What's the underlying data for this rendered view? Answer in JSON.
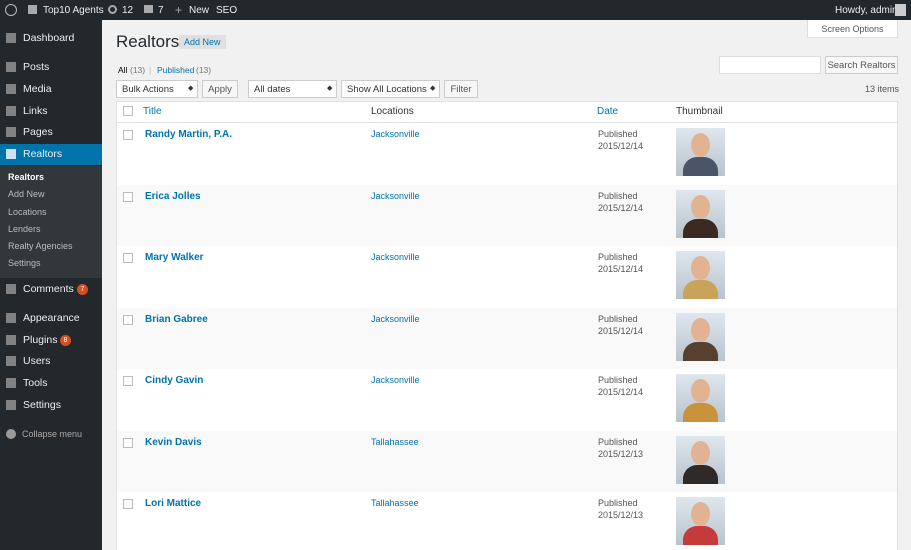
{
  "admin_bar": {
    "site": "Top10 Agents",
    "updates": "12",
    "comments": "7",
    "new": "New",
    "seo": "SEO",
    "howdy": "Howdy, admin"
  },
  "menu": [
    {
      "label": "Dashboard"
    },
    {
      "label": "Posts"
    },
    {
      "label": "Media"
    },
    {
      "label": "Links"
    },
    {
      "label": "Pages"
    },
    {
      "label": "Realtors"
    }
  ],
  "submenu": [
    "Realtors",
    "Add New",
    "Locations",
    "Lenders",
    "Realty Agencies",
    "Settings"
  ],
  "menu_lower": [
    {
      "label": "Comments",
      "badge": "7"
    },
    {
      "label": "Appearance"
    },
    {
      "label": "Plugins",
      "badge": "8"
    },
    {
      "label": "Users"
    },
    {
      "label": "Tools"
    },
    {
      "label": "Settings"
    }
  ],
  "collapse": "Collapse menu",
  "page": {
    "title": "Realtors",
    "add_new": "Add New",
    "screen_options": "Screen Options",
    "views": {
      "all": "All",
      "all_count": "(13)",
      "published": "Published",
      "published_count": "(13)"
    },
    "bulk_actions": "Bulk Actions",
    "apply": "Apply",
    "dates": "All dates",
    "locations": "Show All Locations",
    "filter": "Filter",
    "search": "Search Realtors",
    "items": "13 items"
  },
  "table": {
    "columns": [
      "Title",
      "Locations",
      "Date",
      "Thumbnail"
    ],
    "rows": [
      [
        "Randy Martin, P.A.",
        "Jacksonville",
        "Published",
        "2015/12/14"
      ],
      [
        "Erica Jolles",
        "Jacksonville",
        "Published",
        "2015/12/14"
      ],
      [
        "Mary Walker",
        "Jacksonville",
        "Published",
        "2015/12/14"
      ],
      [
        "Brian Gabree",
        "Jacksonville",
        "Published",
        "2015/12/14"
      ],
      [
        "Cindy Gavin",
        "Jacksonville",
        "Published",
        "2015/12/14"
      ],
      [
        "Kevin Davis",
        "Tallahassee",
        "Published",
        "2015/12/13"
      ],
      [
        "Lori Mattice",
        "Tallahassee",
        "Published",
        "2015/12/13"
      ]
    ]
  }
}
